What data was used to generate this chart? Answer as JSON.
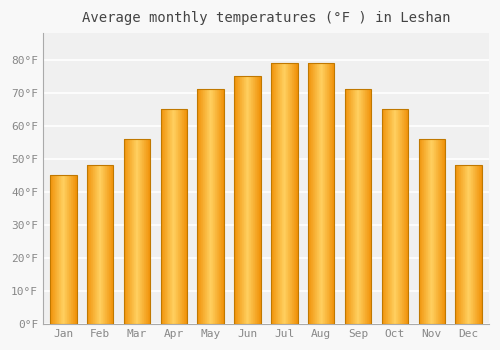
{
  "title": "Average monthly temperatures (°F ) in Leshan",
  "months": [
    "Jan",
    "Feb",
    "Mar",
    "Apr",
    "May",
    "Jun",
    "Jul",
    "Aug",
    "Sep",
    "Oct",
    "Nov",
    "Dec"
  ],
  "values": [
    45,
    48,
    56,
    65,
    71,
    75,
    79,
    79,
    71,
    65,
    56,
    48
  ],
  "bar_color_center": "#FFD060",
  "bar_color_edge": "#F0920A",
  "bar_outline_color": "#C07800",
  "ylim": [
    0,
    88
  ],
  "yticks": [
    0,
    10,
    20,
    30,
    40,
    50,
    60,
    70,
    80
  ],
  "ytick_labels": [
    "0°F",
    "10°F",
    "20°F",
    "30°F",
    "40°F",
    "50°F",
    "60°F",
    "70°F",
    "80°F"
  ],
  "background_color": "#f8f8f8",
  "plot_bg_color": "#f0f0f0",
  "grid_color": "#ffffff",
  "title_fontsize": 10,
  "tick_fontsize": 8,
  "tick_color": "#888888"
}
